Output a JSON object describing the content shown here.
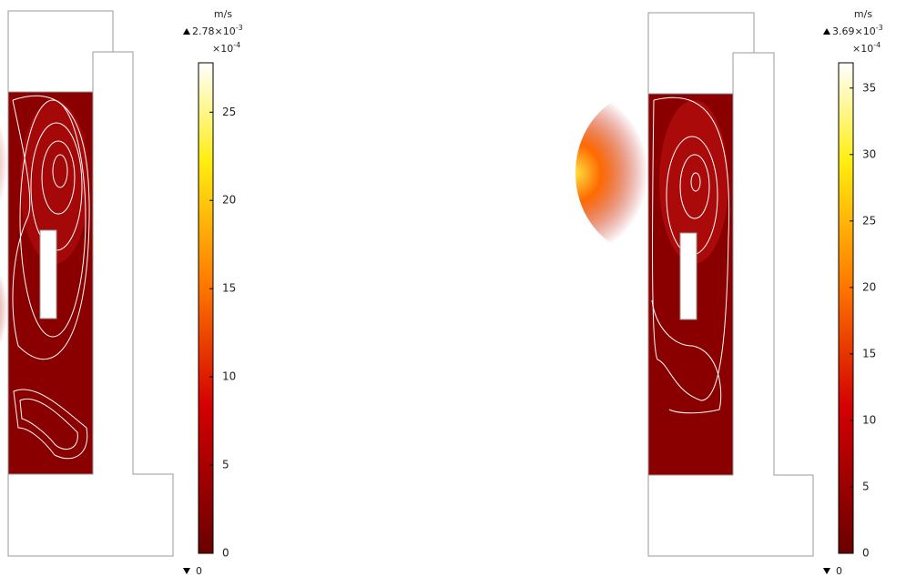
{
  "panels": [
    {
      "unit": "m/s",
      "max_label": "2.78×10",
      "max_exponent": "-3",
      "scale_label": "×10",
      "scale_exponent": "-4",
      "min_label": "0",
      "range": [
        0,
        27.8
      ],
      "ticks": [
        0,
        5,
        10,
        15,
        20,
        25
      ]
    },
    {
      "unit": "m/s",
      "max_label": "3.69×10",
      "max_exponent": "-3",
      "scale_label": "×10",
      "scale_exponent": "-4",
      "min_label": "0",
      "range": [
        0,
        36.9
      ],
      "ticks": [
        0,
        5,
        10,
        15,
        20,
        25,
        30,
        35
      ]
    }
  ]
}
